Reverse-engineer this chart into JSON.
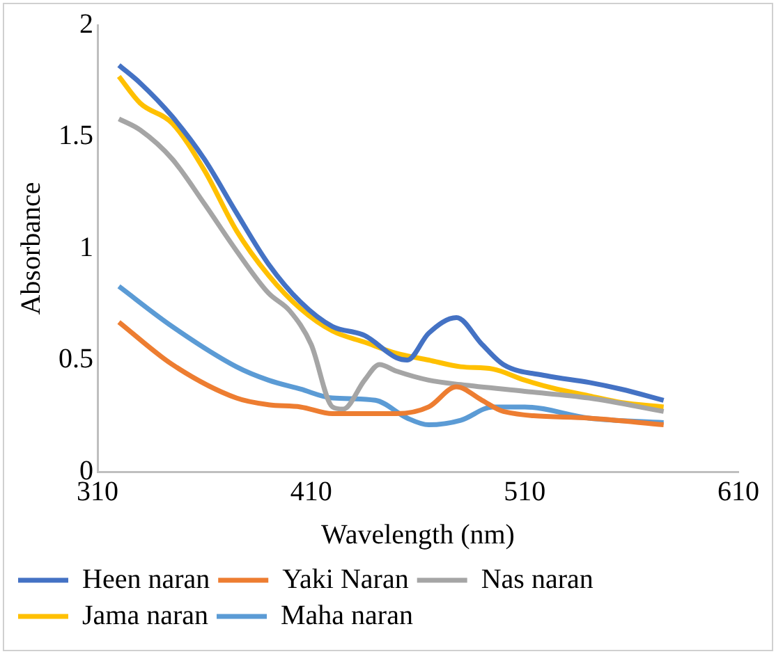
{
  "chart_data": {
    "type": "line",
    "xlabel": "Wavelength (nm)",
    "ylabel": "Absorbance",
    "xlim": [
      310,
      610
    ],
    "xticks": [
      310,
      410,
      510,
      610
    ],
    "ylim": [
      0,
      2
    ],
    "yticks": [
      0,
      0.5,
      1,
      1.5,
      2
    ],
    "grid": false,
    "legend": "bottom",
    "marker": "none",
    "line_style": "solid",
    "series": [
      {
        "name": "Heen naran",
        "color": "#4472c4",
        "x": [
          320,
          330,
          345,
          360,
          375,
          390,
          405,
          420,
          435,
          450,
          455,
          465,
          478,
          490,
          500,
          520,
          540,
          555,
          575
        ],
        "values": [
          1.82,
          1.74,
          1.59,
          1.4,
          1.16,
          0.93,
          0.76,
          0.65,
          0.61,
          0.51,
          0.5,
          0.62,
          0.69,
          0.57,
          0.48,
          0.43,
          0.4,
          0.37,
          0.32
        ]
      },
      {
        "name": "Yaki Naran",
        "color": "#ed7d31",
        "x": [
          320,
          345,
          375,
          390,
          405,
          420,
          450,
          465,
          478,
          490,
          500,
          540,
          575
        ],
        "values": [
          0.67,
          0.48,
          0.33,
          0.3,
          0.29,
          0.26,
          0.26,
          0.29,
          0.38,
          0.32,
          0.27,
          0.24,
          0.21
        ]
      },
      {
        "name": "Nas naran",
        "color": "#a5a5a5",
        "x": [
          320,
          330,
          345,
          360,
          375,
          390,
          400,
          410,
          420,
          425,
          435,
          442,
          450,
          465,
          480,
          510,
          540,
          575
        ],
        "values": [
          1.58,
          1.53,
          1.4,
          1.2,
          0.99,
          0.8,
          0.72,
          0.57,
          0.29,
          0.28,
          0.41,
          0.48,
          0.45,
          0.41,
          0.39,
          0.36,
          0.33,
          0.27
        ]
      },
      {
        "name": "Jama naran",
        "color": "#ffc000",
        "x": [
          320,
          330,
          345,
          360,
          375,
          390,
          405,
          420,
          435,
          450,
          465,
          480,
          495,
          510,
          525,
          540,
          555,
          575
        ],
        "values": [
          1.77,
          1.65,
          1.56,
          1.35,
          1.08,
          0.88,
          0.73,
          0.63,
          0.58,
          0.53,
          0.5,
          0.47,
          0.46,
          0.41,
          0.37,
          0.34,
          0.31,
          0.29
        ]
      },
      {
        "name": "Maha naran",
        "color": "#5b9bd5",
        "x": [
          320,
          345,
          375,
          390,
          405,
          420,
          440,
          455,
          465,
          480,
          495,
          510,
          540,
          575
        ],
        "values": [
          0.83,
          0.65,
          0.47,
          0.41,
          0.37,
          0.33,
          0.32,
          0.24,
          0.21,
          0.23,
          0.29,
          0.29,
          0.24,
          0.22
        ]
      }
    ]
  }
}
